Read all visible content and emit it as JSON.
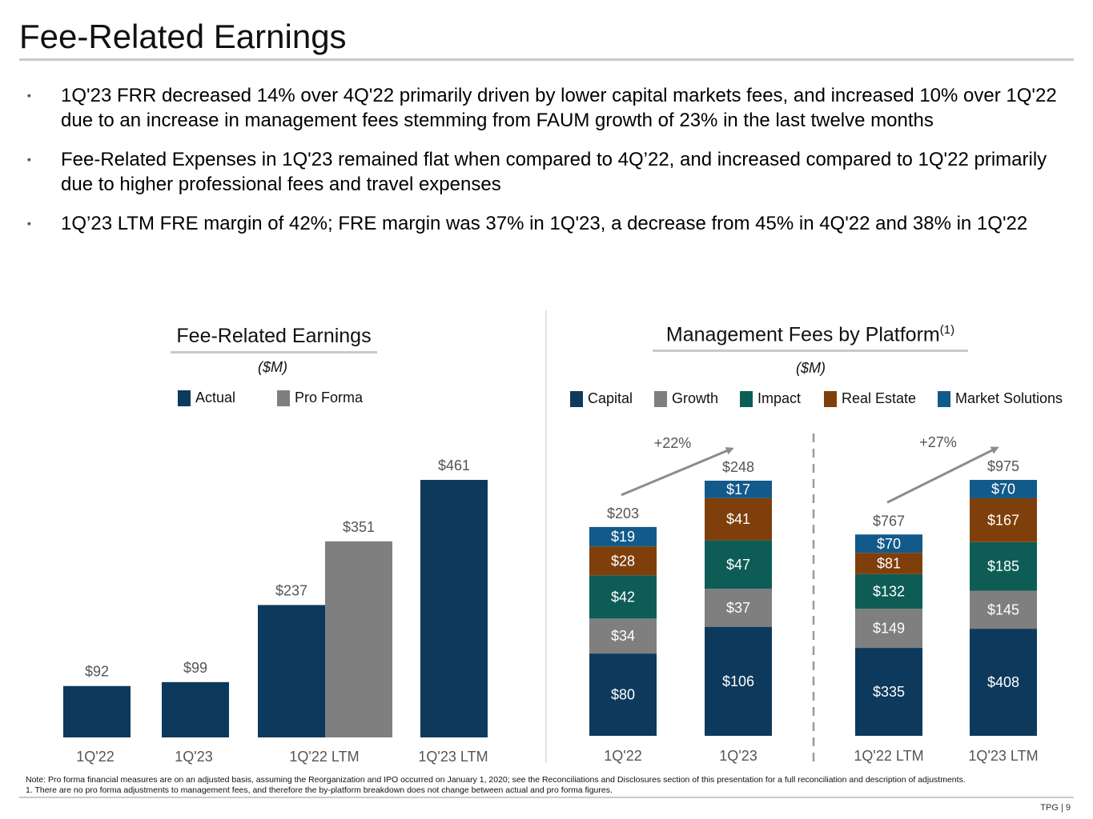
{
  "page": {
    "title": "Fee-Related Earnings",
    "page_number": "TPG | 9"
  },
  "bullets": [
    "1Q'23 FRR decreased 14% over 4Q'22 primarily driven by lower capital markets fees, and increased 10% over 1Q'22 due to an increase in management fees stemming from FAUM growth of 23% in the last twelve months",
    "Fee-Related Expenses in 1Q'23 remained flat when compared to 4Q’22, and increased compared to 1Q'22 primarily due to higher professional fees and travel expenses",
    "1Q’23 LTM FRE margin of 42%; FRE margin was 37% in 1Q'23, a decrease from 45% in 4Q'22 and 38% in 1Q'22"
  ],
  "bullet_marker": "▪",
  "colors": {
    "actual": "#0d3a5c",
    "pro_forma": "#7f7f7f",
    "capital": "#0d3a5c",
    "growth": "#7f7f7f",
    "impact": "#0d5d56",
    "real_estate": "#7f3f0a",
    "market_solutions": "#125a8a",
    "arrow": "#8c8c8c"
  },
  "chart_data": [
    {
      "type": "bar",
      "title": "Fee-Related Earnings",
      "unit": "($M)",
      "categories": [
        "1Q'22",
        "1Q'23",
        "1Q'22 LTM",
        "1Q'23 LTM"
      ],
      "series": [
        {
          "name": "Actual",
          "values": [
            92,
            99,
            237,
            461
          ],
          "labels": [
            "$92",
            "$99",
            "$237",
            "$461"
          ]
        },
        {
          "name": "Pro Forma",
          "values": [
            null,
            null,
            351,
            null
          ],
          "labels": [
            null,
            null,
            "$351",
            null
          ]
        }
      ],
      "ylim": [
        0,
        520
      ],
      "legend": "top"
    },
    {
      "type": "bar",
      "stacked": true,
      "title": "Management Fees by Platform",
      "title_superscript": "(1)",
      "unit": "($M)",
      "categories": [
        "1Q'22",
        "1Q'23",
        "1Q'22 LTM",
        "1Q'23 LTM"
      ],
      "series": [
        {
          "name": "Capital",
          "values": [
            80,
            106,
            335,
            408
          ]
        },
        {
          "name": "Growth",
          "values": [
            34,
            37,
            149,
            145
          ]
        },
        {
          "name": "Impact",
          "values": [
            42,
            47,
            132,
            185
          ]
        },
        {
          "name": "Real Estate",
          "values": [
            28,
            41,
            81,
            167
          ]
        },
        {
          "name": "Market Solutions",
          "values": [
            19,
            17,
            70,
            70
          ]
        }
      ],
      "totals": [
        203,
        248,
        767,
        975
      ],
      "total_labels": [
        "$203",
        "$248",
        "$767",
        "$975"
      ],
      "growth_annotations": [
        "+22%",
        "+27%"
      ],
      "legend": "top"
    }
  ],
  "notes": [
    "Note: Pro forma financial measures are on an adjusted basis, assuming the Reorganization and IPO occurred on January 1, 2020; see the Reconciliations and Disclosures section of this presentation for a full reconciliation and description of adjustments.",
    "1. There are no pro forma adjustments to management fees, and therefore the by-platform breakdown does not change between actual and pro forma figures."
  ]
}
